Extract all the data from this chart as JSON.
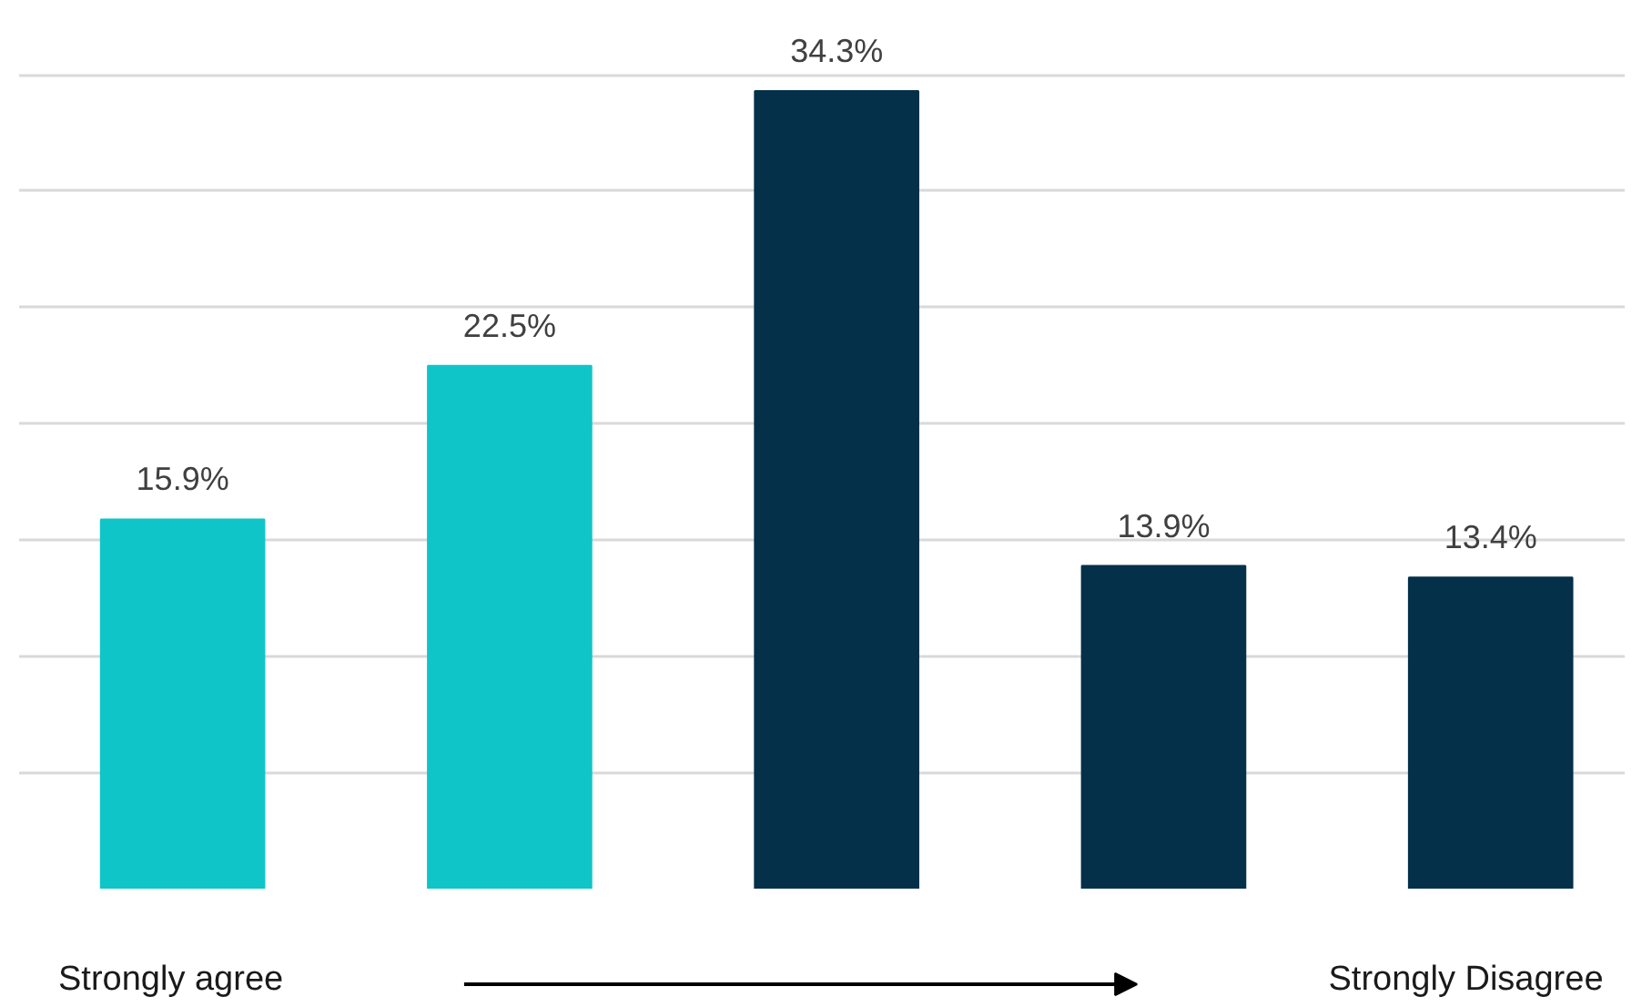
{
  "chart_data": {
    "type": "bar",
    "categories": [
      null,
      null,
      null,
      null,
      null
    ],
    "values": [
      15.9,
      22.5,
      34.3,
      13.9,
      13.4
    ],
    "colors": [
      "#10c5c8",
      "#10c5c8",
      "#04304a",
      "#04304a",
      "#04304a"
    ],
    "data_labels": true,
    "value_labels": [
      "15.9%",
      "22.5%",
      "34.3%",
      "13.9%",
      "13.4%"
    ],
    "tick_labels": false,
    "grid": "y",
    "annotations": [
      "Strongly agree",
      "Strongly Disagree"
    ]
  }
}
